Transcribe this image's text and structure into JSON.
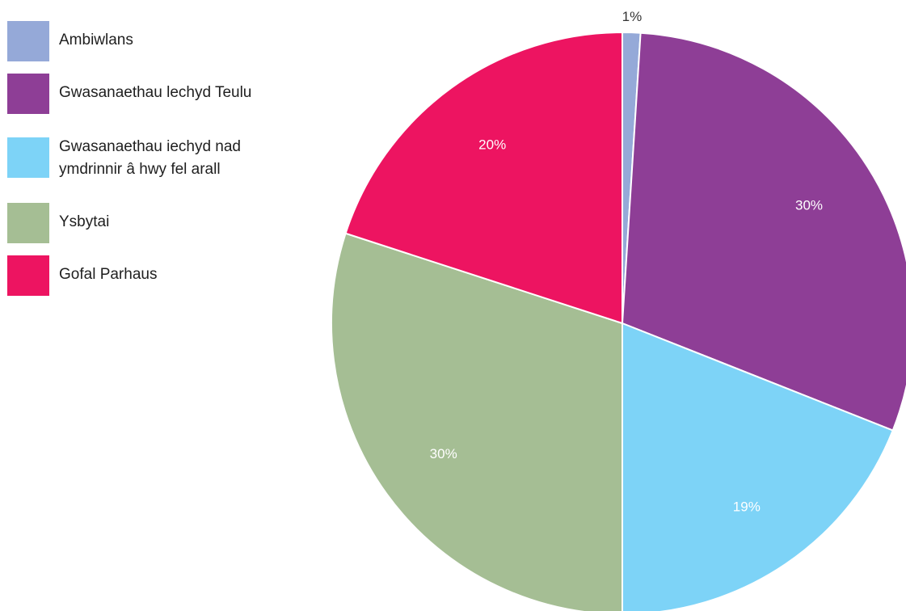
{
  "chart_data": {
    "type": "pie",
    "title": "",
    "slices": [
      {
        "label": "Ambiwlans",
        "value": 1,
        "display": "1%",
        "color": "#95a9d8",
        "label_color": "#333333"
      },
      {
        "label": "Gwasanaethau lechyd Teulu",
        "value": 30,
        "display": "30%",
        "color": "#8e3e96",
        "label_color": "#ffffff"
      },
      {
        "label": "Gwasanaethau iechyd nad ymdrinnir â hwy fel arall",
        "value": 19,
        "display": "19%",
        "color": "#7dd3f7",
        "label_color": "#ffffff"
      },
      {
        "label": "Ysbytai",
        "value": 30,
        "display": "30%",
        "color": "#a5be94",
        "label_color": "#ffffff"
      },
      {
        "label": "Gofal Parhaus",
        "value": 20,
        "display": "20%",
        "color": "#ed1461",
        "label_color": "#ffffff"
      }
    ],
    "start_angle_deg": 0,
    "direction": "clockwise",
    "legend_position": "left"
  }
}
